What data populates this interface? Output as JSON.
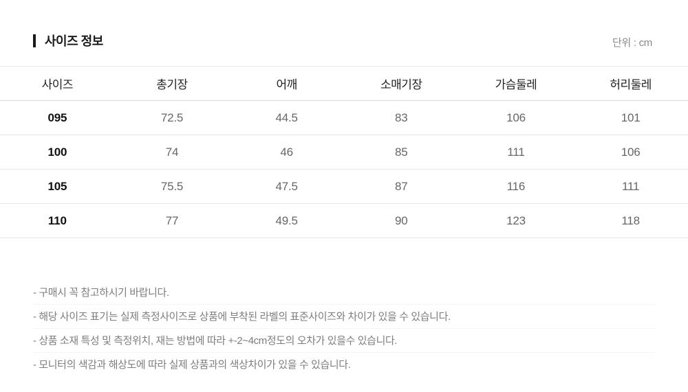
{
  "header": {
    "title": "사이즈 정보",
    "unit_label": "단위 : cm"
  },
  "table": {
    "columns": [
      "사이즈",
      "총기장",
      "어깨",
      "소매기장",
      "가슴둘레",
      "허리둘레"
    ],
    "rows": [
      {
        "cells": [
          "095",
          "72.5",
          "44.5",
          "83",
          "106",
          "101"
        ]
      },
      {
        "cells": [
          "100",
          "74",
          "46",
          "85",
          "111",
          "106"
        ]
      },
      {
        "cells": [
          "105",
          "75.5",
          "47.5",
          "87",
          "116",
          "111"
        ]
      },
      {
        "cells": [
          "110",
          "77",
          "49.5",
          "90",
          "123",
          "118"
        ]
      }
    ]
  },
  "notes": {
    "items": [
      "- 구매시 꼭 참고하시기 바랍니다.",
      "- 해당 사이즈 표기는 실제 측정사이즈로 상품에 부착된 라벨의 표준사이즈와 차이가 있을 수 있습니다.",
      "- 상품 소재 특성 및 측정위치, 재는 방법에 따라 +-2~4cm정도의 오차가 있을수 있습니다.",
      "- 모니터의 색감과 해상도에 따라 실제 상품과의 색상차이가 있을 수 있습니다."
    ]
  },
  "colors": {
    "title": "#1a1a1a",
    "header_text": "#222222",
    "size_text": "#111111",
    "value_text": "#666666",
    "unit_text": "#888888",
    "note_text": "#7d7d7d",
    "divider": "#e8e8e8",
    "header_divider": "#d9d9d9",
    "note_divider": "#f3f3f3"
  }
}
